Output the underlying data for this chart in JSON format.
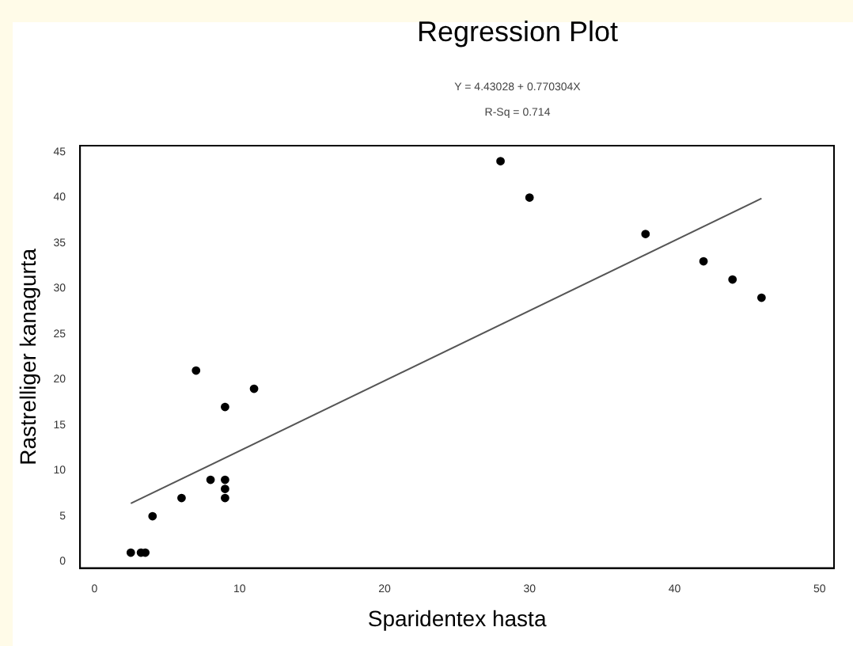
{
  "chart_data": {
    "type": "scatter",
    "title": "Regression Plot",
    "subtitle": "Y = 4.43028 + 0.770304X",
    "annotations": [
      "R-Sq = 0.714"
    ],
    "xlabel": "Sparidentex hasta",
    "ylabel": "Rastrelliger kanagurta",
    "xlim": [
      -1,
      51
    ],
    "ylim": [
      -0.7,
      45.7
    ],
    "xticks": [
      0,
      10,
      20,
      30,
      40,
      50
    ],
    "yticks": [
      0,
      5,
      10,
      15,
      20,
      25,
      30,
      35,
      40,
      45
    ],
    "grid": false,
    "legend": false,
    "marker": "circle",
    "series": [
      {
        "type": "scatter",
        "color": "#000000",
        "x": [
          2.5,
          3.2,
          3.5,
          4,
          6,
          7,
          8,
          9,
          9,
          9,
          9,
          11,
          28,
          30,
          38,
          42,
          44,
          46
        ],
        "values": [
          1,
          1,
          1,
          5,
          7,
          21,
          9,
          9,
          8,
          7,
          17,
          19,
          44,
          40,
          36,
          33,
          31,
          29
        ]
      },
      {
        "type": "line",
        "color": "#555555",
        "line_style": "solid",
        "marker": "none",
        "x": [
          2.5,
          46
        ],
        "values": [
          6.4,
          39.9
        ]
      }
    ]
  }
}
